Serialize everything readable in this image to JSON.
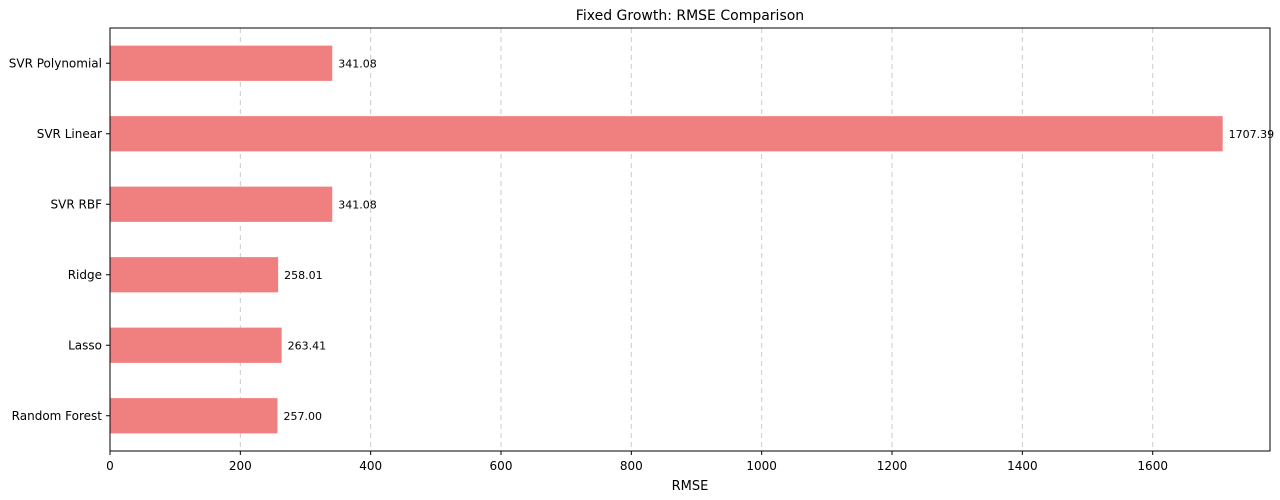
{
  "chart_data": {
    "type": "bar",
    "orientation": "horizontal",
    "title": "Fixed Growth: RMSE Comparison",
    "xlabel": "RMSE",
    "ylabel": "",
    "categories": [
      "SVR Polynomial",
      "SVR Linear",
      "SVR RBF",
      "Ridge",
      "Lasso",
      "Random Forest"
    ],
    "values": [
      341.08,
      1707.39,
      341.08,
      258.01,
      263.41,
      257.0
    ],
    "value_labels": [
      "341.08",
      "1707.39",
      "341.08",
      "258.01",
      "263.41",
      "257.00"
    ],
    "xlim": [
      0,
      1780
    ],
    "xticks": [
      0,
      200,
      400,
      600,
      800,
      1000,
      1200,
      1400,
      1600
    ],
    "grid": "x-dashed",
    "bar_color": "#f08080"
  }
}
